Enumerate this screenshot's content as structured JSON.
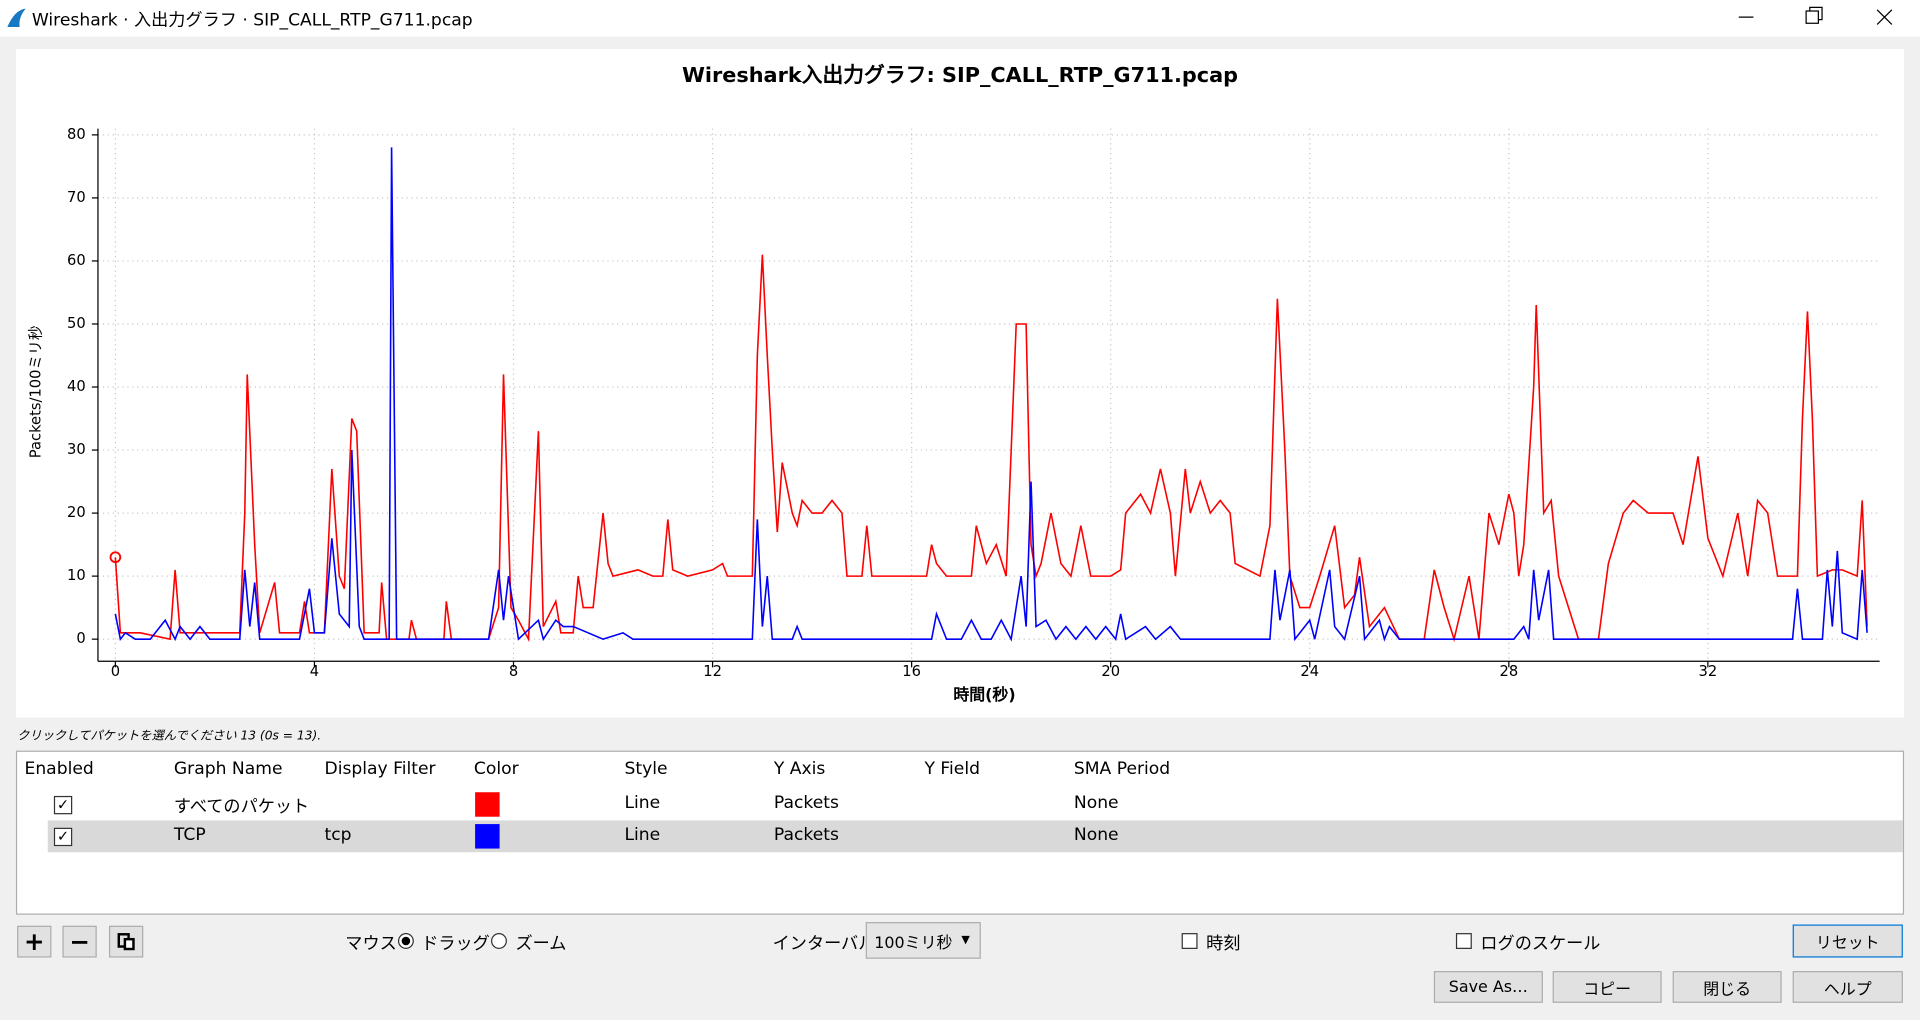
{
  "window": {
    "title": "Wireshark · 入出力グラフ · SIP_CALL_RTP_G711.pcap"
  },
  "chart_data": {
    "type": "line",
    "title": "Wireshark入出力グラフ: SIP_CALL_RTP_G711.pcap",
    "x_label": "時間(秒)",
    "y_label": "Packets/100ミリ秒",
    "xlim": [
      -0.35,
      35.45
    ],
    "ylim": [
      -3.5,
      81
    ],
    "xticks": [
      0,
      4,
      8,
      12,
      16,
      20,
      24,
      28,
      32
    ],
    "yticks": [
      0,
      10,
      20,
      30,
      40,
      50,
      60,
      70,
      80
    ],
    "grid": true,
    "series": [
      {
        "name": "すべてのパケット",
        "color": "#ff0000",
        "x": [
          0,
          0.1,
          0.5,
          1.1,
          1.2,
          1.3,
          2.0,
          2.5,
          2.6,
          2.65,
          2.8,
          2.9,
          3.2,
          3.3,
          3.7,
          3.8,
          3.9,
          4.2,
          4.35,
          4.5,
          4.6,
          4.75,
          4.85,
          5.0,
          5.3,
          5.35,
          5.45,
          5.6,
          5.9,
          5.95,
          6.05,
          6.6,
          6.65,
          6.75,
          7.5,
          7.7,
          7.8,
          7.95,
          8.1,
          8.3,
          8.5,
          8.6,
          8.85,
          8.95,
          9.2,
          9.3,
          9.4,
          9.6,
          9.8,
          9.9,
          10.0,
          10.5,
          10.8,
          11.0,
          11.1,
          11.2,
          11.5,
          12.0,
          12.2,
          12.3,
          12.8,
          12.9,
          13.0,
          13.1,
          13.2,
          13.3,
          13.4,
          13.5,
          13.6,
          13.7,
          13.8,
          14.0,
          14.2,
          14.4,
          14.6,
          14.7,
          15.0,
          15.1,
          15.2,
          16.0,
          16.3,
          16.4,
          16.5,
          16.7,
          17.0,
          17.2,
          17.3,
          17.5,
          17.7,
          17.9,
          18.1,
          18.3,
          18.4,
          18.5,
          18.6,
          18.8,
          19.0,
          19.2,
          19.4,
          19.6,
          20.0,
          20.2,
          20.3,
          20.6,
          20.8,
          21.0,
          21.2,
          21.3,
          21.5,
          21.6,
          21.8,
          22.0,
          22.2,
          22.4,
          22.5,
          23.0,
          23.2,
          23.35,
          23.5,
          23.6,
          23.8,
          24.0,
          24.2,
          24.5,
          24.7,
          24.9,
          25.0,
          25.2,
          25.5,
          25.8,
          26.0,
          26.3,
          26.5,
          26.7,
          26.9,
          27.2,
          27.4,
          27.6,
          27.8,
          28.0,
          28.1,
          28.2,
          28.3,
          28.5,
          28.55,
          28.7,
          28.85,
          29.0,
          29.2,
          29.4,
          29.8,
          30.0,
          30.3,
          30.5,
          30.8,
          31.0,
          31.3,
          31.5,
          31.8,
          32.0,
          32.3,
          32.6,
          32.8,
          33.0,
          33.2,
          33.4,
          33.8,
          33.9,
          34.0,
          34.1,
          34.2,
          34.5,
          34.7,
          35.0,
          35.1,
          35.2
        ],
        "values": [
          13,
          1,
          1,
          0,
          11,
          1,
          1,
          1,
          20,
          42,
          15,
          1,
          9,
          1,
          1,
          6,
          1,
          1,
          27,
          10,
          8,
          35,
          33,
          1,
          1,
          9,
          0,
          0,
          0,
          3,
          0,
          0,
          6,
          0,
          0,
          5,
          42,
          5,
          3,
          0,
          33,
          2,
          6,
          1,
          1,
          10,
          5,
          5,
          20,
          12,
          10,
          11,
          10,
          10,
          19,
          11,
          10,
          11,
          12,
          10,
          10,
          45,
          61,
          45,
          30,
          17,
          28,
          24,
          20,
          18,
          22,
          20,
          20,
          22,
          20,
          10,
          10,
          18,
          10,
          10,
          10,
          15,
          12,
          10,
          10,
          10,
          18,
          12,
          15,
          10,
          50,
          50,
          15,
          10,
          12,
          20,
          12,
          10,
          18,
          10,
          10,
          11,
          20,
          23,
          20,
          27,
          20,
          10,
          27,
          20,
          25,
          20,
          22,
          20,
          12,
          10,
          18,
          54,
          30,
          10,
          5,
          5,
          10,
          18,
          5,
          7,
          13,
          2,
          5,
          0,
          0,
          0,
          11,
          5,
          0,
          10,
          0,
          20,
          15,
          23,
          20,
          10,
          15,
          40,
          53,
          20,
          22,
          10,
          5,
          0,
          0,
          12,
          20,
          22,
          20,
          20,
          20,
          15,
          29,
          16,
          10,
          20,
          10,
          22,
          20,
          10,
          10,
          35,
          52,
          35,
          10,
          11,
          11,
          10,
          22,
          2
        ]
      },
      {
        "name": "TCP",
        "color": "#0000ff",
        "x": [
          0,
          0.1,
          0.2,
          0.4,
          0.7,
          1.0,
          1.2,
          1.3,
          1.5,
          1.7,
          1.9,
          2.5,
          2.6,
          2.7,
          2.8,
          2.9,
          3.7,
          3.9,
          4.0,
          4.2,
          4.35,
          4.5,
          4.7,
          4.75,
          4.9,
          5.0,
          5.5,
          5.55,
          5.65,
          7.5,
          7.7,
          7.8,
          7.9,
          8.1,
          8.5,
          8.6,
          8.85,
          9.0,
          9.2,
          9.5,
          9.8,
          10.2,
          10.4,
          12.8,
          12.9,
          13.0,
          13.1,
          13.2,
          13.6,
          13.7,
          13.8,
          16.4,
          16.5,
          16.7,
          17.0,
          17.2,
          17.4,
          17.6,
          17.8,
          18.0,
          18.2,
          18.3,
          18.4,
          18.5,
          18.7,
          18.9,
          19.1,
          19.3,
          19.5,
          19.7,
          19.9,
          20.1,
          20.2,
          20.3,
          20.7,
          20.9,
          21.2,
          21.4,
          23.2,
          23.3,
          23.4,
          23.6,
          23.7,
          24.0,
          24.1,
          24.4,
          24.5,
          24.7,
          25.0,
          25.1,
          25.4,
          25.5,
          25.6,
          25.8,
          28.1,
          28.3,
          28.4,
          28.5,
          28.6,
          28.8,
          28.9,
          29.1,
          33.7,
          33.8,
          33.9,
          34.3,
          34.4,
          34.5,
          34.6,
          34.7,
          35.0,
          35.1,
          35.2
        ],
        "values": [
          4,
          0,
          1,
          0,
          0,
          3,
          0,
          2,
          0,
          2,
          0,
          0,
          11,
          2,
          9,
          0,
          0,
          8,
          1,
          1,
          16,
          4,
          2,
          30,
          2,
          0,
          0,
          78,
          0,
          0,
          11,
          3,
          10,
          0,
          3,
          0,
          3,
          2,
          2,
          1,
          0,
          1,
          0,
          0,
          19,
          2,
          10,
          0,
          0,
          2,
          0,
          0,
          4,
          0,
          0,
          3,
          0,
          0,
          3,
          0,
          10,
          2,
          25,
          2,
          3,
          0,
          2,
          0,
          2,
          0,
          2,
          0,
          4,
          0,
          2,
          0,
          2,
          0,
          0,
          11,
          3,
          11,
          0,
          3,
          0,
          11,
          2,
          0,
          10,
          0,
          3,
          0,
          2,
          0,
          0,
          2,
          0,
          11,
          3,
          11,
          0,
          0,
          0,
          8,
          0,
          0,
          11,
          2,
          14,
          1,
          0,
          11,
          1
        ]
      }
    ]
  },
  "status": "クリックしてパケットを選んでください 13 (0s = 13).",
  "table": {
    "headers": [
      "Enabled",
      "Graph Name",
      "Display Filter",
      "Color",
      "Style",
      "Y Axis",
      "Y Field",
      "SMA Period"
    ],
    "rows": [
      {
        "enabled": true,
        "style": "Line",
        "y_axis": "Packets",
        "sma_period": "None"
      },
      {
        "enabled": true,
        "display_filter": "tcp",
        "style": "Line",
        "y_axis": "Packets",
        "sma_period": "None"
      }
    ]
  },
  "controls": {
    "mouse": {
      "label": "マウス",
      "options": [
        "ドラッグ",
        "ズーム"
      ],
      "selected": 0
    },
    "interval": {
      "label": "インターバル",
      "value": "100ミリ秒"
    },
    "time_of_day": {
      "label": "時刻",
      "checked": false
    },
    "log_scale": {
      "label": "ログのスケール",
      "checked": false
    },
    "reset": "リセット",
    "save_as": "Save As…",
    "copy": "コピー",
    "close": "閉じる",
    "help": "ヘルプ"
  }
}
